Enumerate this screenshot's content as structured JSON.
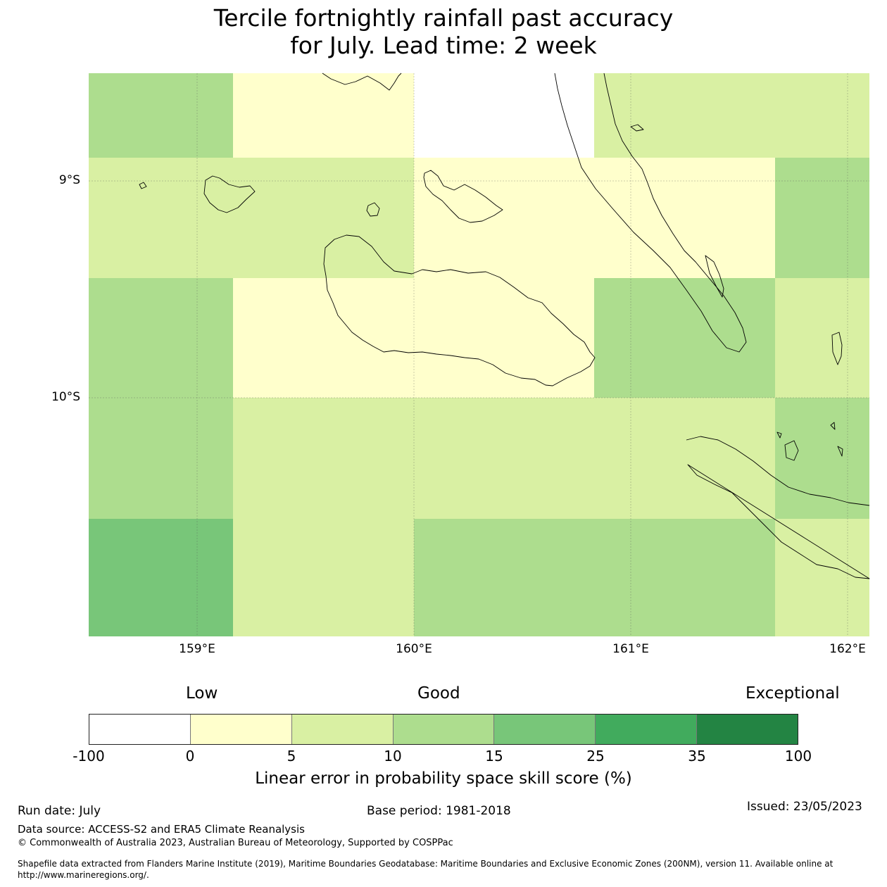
{
  "title": {
    "line1": "Tercile fortnightly rainfall past accuracy",
    "line2": "for July. Lead time: 2 week"
  },
  "map": {
    "lat_labels": [
      "9°S",
      "10°S"
    ],
    "lon_labels": [
      "159°E",
      "160°E",
      "161°E",
      "162°E"
    ],
    "grid_colors": [
      [
        "#addd8e",
        "#ffffcc",
        "#ffffcc",
        "#ffffff",
        "#d9f0a3",
        "#d9f0a3",
        "#d9f0a3"
      ],
      [
        "#d9f0a3",
        "#d9f0a3",
        "#ffffcc",
        "#ffffcc",
        "#ffffcc",
        "#ffffcc",
        "#addd8e"
      ],
      [
        "#addd8e",
        "#ffffcc",
        "#ffffcc",
        "#ffffcc",
        "#addd8e",
        "#addd8e",
        "#d9f0a3"
      ],
      [
        "#addd8e",
        "#d9f0a3",
        "#d9f0a3",
        "#d9f0a3",
        "#d9f0a3",
        "#d9f0a3",
        "#addd8e"
      ],
      [
        "#78c679",
        "#d9f0a3",
        "#addd8e",
        "#addd8e",
        "#addd8e",
        "#addd8e",
        "#d9f0a3"
      ]
    ]
  },
  "colorbar": {
    "categories": [
      "Low",
      "Good",
      "Exceptional"
    ],
    "colors": [
      "#ffffff",
      "#ffffcc",
      "#d9f0a3",
      "#addd8e",
      "#78c679",
      "#41ab5d",
      "#238443"
    ],
    "ticks": [
      "-100",
      "0",
      "5",
      "10",
      "15",
      "25",
      "35",
      "100"
    ],
    "label": "Linear error in probability space skill score (%)"
  },
  "footer": {
    "run_date": "Run date: July",
    "base_period": "Base period: 1981-2018",
    "issued": "Issued: 23/05/2023",
    "data_source": "Data source: ACCESS-S2 and ERA5 Climate Reanalysis",
    "copyright": "© Commonwealth of Australia 2023, Australian Bureau of Meteorology, Supported by COSPPac",
    "shapefile_line1": "Shapefile data extracted from Flanders Marine Institute (2019), Maritime Boundaries Geodatabase: Maritime Boundaries and Exclusive Economic Zones (200NM), version 11. Available online at",
    "shapefile_line2": "http://www.marineregions.org/."
  }
}
